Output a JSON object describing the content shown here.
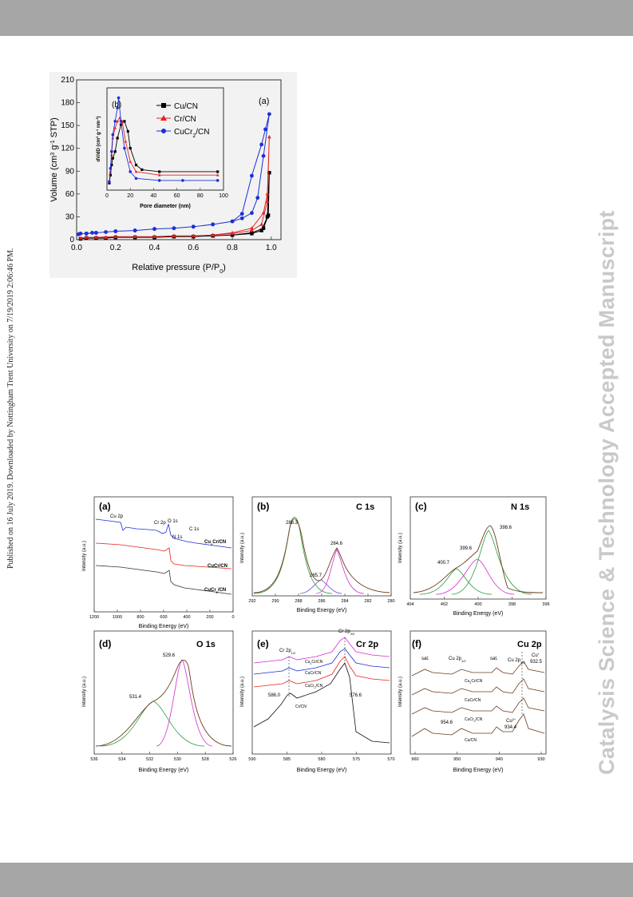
{
  "page": {
    "watermark": "Catalysis Science & Technology Accepted Manuscript",
    "published_note": "Published on 16 July 2019. Downloaded by Nottingham Trent University on 7/19/2019 2:06:46 PM.",
    "band_color": "#a6a6a6"
  },
  "colors": {
    "cu": "#000000",
    "cr": "#e8231f",
    "cucr": "#1c2fd8"
  },
  "figure1": {
    "main": {
      "panel_label": "(a)",
      "xlabel": "Relative pressure (P/P0)",
      "ylabel": "Volume (cm3 g-1 STP)",
      "x_ticks": [
        "0.0",
        "0.2",
        "0.4",
        "0.6",
        "0.8",
        "1.0"
      ],
      "y_ticks": [
        "0",
        "30",
        "60",
        "90",
        "120",
        "150",
        "180",
        "210"
      ]
    },
    "inset": {
      "panel_label": "(b)",
      "xlabel": "Pore diameter (nm)",
      "ylabel": "dV/dD (cm3 g-1 nm-1)",
      "x_ticks": [
        "0",
        "20",
        "40",
        "60",
        "80",
        "100"
      ]
    },
    "legend": [
      "Cu/CN",
      "Cr/CN",
      "CuCr2/CN"
    ]
  },
  "chart_data": [
    {
      "type": "scatter",
      "title": "",
      "xlabel": "Relative pressure (P/P0)",
      "ylabel": "Volume (cm3 g-1 STP)",
      "xlim": [
        0,
        1.05
      ],
      "ylim": [
        0,
        210
      ],
      "series": [
        {
          "name": "Cu/CN",
          "x": [
            0.02,
            0.05,
            0.1,
            0.15,
            0.2,
            0.3,
            0.4,
            0.5,
            0.6,
            0.7,
            0.8,
            0.9,
            0.95,
            0.98,
            0.99,
            0.985,
            0.96,
            0.9,
            0.8,
            0.7,
            0.6,
            0.5,
            0.4,
            0.3,
            0.2,
            0.1,
            0.05
          ],
          "y": [
            1,
            2,
            2,
            2,
            3,
            3,
            3,
            4,
            4,
            5,
            6,
            8,
            12,
            30,
            88,
            32,
            15,
            9,
            6,
            5,
            4,
            4,
            3,
            3,
            3,
            2,
            2
          ]
        },
        {
          "name": "Cr/CN",
          "x": [
            0.02,
            0.05,
            0.1,
            0.15,
            0.2,
            0.3,
            0.4,
            0.5,
            0.6,
            0.7,
            0.8,
            0.9,
            0.95,
            0.98,
            0.99,
            0.98,
            0.96,
            0.9,
            0.8,
            0.7,
            0.6,
            0.5,
            0.4,
            0.3,
            0.2,
            0.1,
            0.05
          ],
          "y": [
            2,
            3,
            3,
            3,
            4,
            4,
            4,
            5,
            5,
            6,
            8,
            12,
            20,
            50,
            135,
            60,
            35,
            15,
            9,
            6,
            5,
            5,
            4,
            4,
            4,
            3,
            3
          ]
        },
        {
          "name": "CuCr2/CN",
          "x": [
            0.01,
            0.02,
            0.05,
            0.08,
            0.1,
            0.15,
            0.2,
            0.3,
            0.4,
            0.5,
            0.6,
            0.7,
            0.8,
            0.85,
            0.9,
            0.93,
            0.96,
            0.99,
            0.97,
            0.95,
            0.9,
            0.85,
            0.8,
            0.7,
            0.6,
            0.5,
            0.4,
            0.3,
            0.2,
            0.1,
            0.05
          ],
          "y": [
            7,
            8,
            8,
            9,
            9,
            10,
            11,
            12,
            14,
            15,
            17,
            20,
            24,
            28,
            35,
            55,
            110,
            165,
            145,
            125,
            84,
            34,
            24,
            20,
            17,
            15,
            14,
            12,
            11,
            9,
            8
          ]
        }
      ]
    },
    {
      "type": "line",
      "title": "",
      "xlabel": "Pore diameter (nm)",
      "ylabel": "dV/dD (cm3 g-1 nm-1)",
      "xlim": [
        0,
        100
      ],
      "series": [
        {
          "name": "Cu/CN",
          "x": [
            2,
            3,
            4,
            5,
            7,
            9,
            12,
            15,
            18,
            20,
            25,
            30,
            45,
            95
          ],
          "y": [
            0.08,
            0.2,
            0.35,
            0.45,
            0.55,
            0.75,
            0.95,
            1.0,
            0.85,
            0.6,
            0.35,
            0.28,
            0.25,
            0.25
          ]
        },
        {
          "name": "Cr/CN",
          "x": [
            2,
            3,
            4,
            5,
            7,
            9,
            11,
            13,
            16,
            20,
            25,
            45,
            95
          ],
          "y": [
            0.1,
            0.25,
            0.5,
            0.75,
            0.9,
            1.0,
            1.05,
            1.0,
            0.7,
            0.4,
            0.25,
            0.2,
            0.2
          ]
        },
        {
          "name": "CuCr2/CN",
          "x": [
            2,
            3,
            4,
            5,
            7,
            9,
            10,
            12,
            15,
            20,
            25,
            45,
            65,
            95
          ],
          "y": [
            0.1,
            0.3,
            0.55,
            0.8,
            1.0,
            1.2,
            1.35,
            1.0,
            0.6,
            0.25,
            0.15,
            0.12,
            0.12,
            0.12
          ]
        }
      ]
    }
  ],
  "figure2": {
    "panels": {
      "a": {
        "label": "(a)",
        "xlabel": "Binding Energy (eV)",
        "ylabel": "Intensity (a.u.)",
        "x_ticks": [
          "1200",
          "1000",
          "800",
          "600",
          "400",
          "200",
          "0"
        ],
        "annotations": [
          "Cu 2p",
          "Cr 2p",
          "O 1s",
          "N 1s",
          "C 1s"
        ],
        "curves": [
          "Cu2Cr/CN",
          "CuCr/CN",
          "CuCr2/CN"
        ]
      },
      "b": {
        "label": "(b)",
        "title": "C 1s",
        "xlabel": "Binding Energy (eV)",
        "ylabel": "Intensity (a.u.)",
        "x_ticks": [
          "292",
          "290",
          "288",
          "286",
          "284",
          "282",
          "280"
        ],
        "peaks": [
          "288.3",
          "285.7",
          "284.6"
        ]
      },
      "c": {
        "label": "(c)",
        "title": "N 1s",
        "xlabel": "Binding Energy (eV)",
        "ylabel": "Intensity (a.u.)",
        "x_ticks": [
          "404",
          "402",
          "400",
          "398",
          "396"
        ],
        "peaks": [
          "400.7",
          "399.6",
          "398.6"
        ]
      },
      "d": {
        "label": "(d)",
        "title": "O 1s",
        "xlabel": "Binding Energy (eV)",
        "ylabel": "Intensity (a.u.)",
        "x_ticks": [
          "536",
          "534",
          "532",
          "530",
          "528",
          "526"
        ],
        "peaks": [
          "531.4",
          "529.6"
        ]
      },
      "e": {
        "label": "(e)",
        "title": "Cr 2p",
        "xlabel": "Binding Energy (eV)",
        "ylabel": "Intensity (a.u.)",
        "x_ticks": [
          "590",
          "585",
          "580",
          "575",
          "570"
        ],
        "annotations": [
          "Cr 2p1/2",
          "Cr 2p3/2"
        ],
        "peaks": [
          "586.0",
          "576.6"
        ],
        "curves": [
          "Cu2Cr/CN",
          "CuCr/CN",
          "CuCr2/CN",
          "Cr/CN"
        ]
      },
      "f": {
        "label": "(f)",
        "title": "Cu 2p",
        "xlabel": "Binding Energy (eV)",
        "ylabel": "Intensity (a.u.)",
        "x_ticks": [
          "960",
          "950",
          "940",
          "930"
        ],
        "annotations": [
          "sat.",
          "Cu 2p1/2",
          "sat.",
          "Cu 2p3/2",
          "Cu+",
          "932.5",
          "954.6",
          "Cu2+",
          "934.4"
        ],
        "curves": [
          "Cu2Cr/CN",
          "CuCr/CN",
          "CuCr2/CN",
          "Cu/CN"
        ]
      }
    }
  }
}
